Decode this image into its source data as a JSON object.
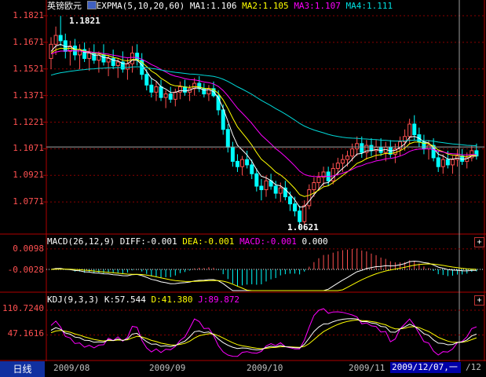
{
  "main_panel": {
    "symbol": "英镑欧元",
    "indicator": "EXPMA(5,10,20,60)",
    "ma1_label": "MA1:1.106",
    "ma2_label": "MA2:1.105",
    "ma3_label": "MA3:1.107",
    "ma4_label": "MA4:1.111",
    "y_ticks": [
      "1.1821",
      "1.1671",
      "1.1521",
      "1.1371",
      "1.1221",
      "1.1071",
      "1.0921",
      "1.0771"
    ],
    "high_label": "1.1821",
    "low_label": "1.0621"
  },
  "macd_panel": {
    "title": "MACD(26,12,9)",
    "diff_label": "DIFF:-0.001",
    "dea_label": "DEA:-0.001",
    "macd_label": "MACD:-0.001",
    "zero_label": "0.000",
    "y_ticks": [
      "0.0098",
      "-0.0028"
    ]
  },
  "kdj_panel": {
    "title": "KDJ(9,3,3)",
    "k_label": "K:57.544",
    "d_label": "D:41.380",
    "j_label": "J:89.872",
    "y_ticks": [
      "110.7240",
      "47.1616"
    ]
  },
  "bottom_bar": {
    "period_tab": "日线",
    "x_ticks": [
      "2009/08",
      "2009/09",
      "2009/10",
      "2009/11"
    ],
    "cursor_date": "2009/12/07,一",
    "cursor_tail": "/12"
  },
  "panel_buttons": {
    "expand": "+"
  },
  "colors": {
    "up": "#ff5050",
    "down": "#00ffff",
    "ma1": "#ffffff",
    "ma2": "#ffff00",
    "ma3": "#ff00ff",
    "ma4": "#00d8d8",
    "grid": "#8b0000",
    "cursor_bg": "#0000a8"
  },
  "chart_data": {
    "type": "candlestick",
    "ylim": [
      1.0621,
      1.1821
    ],
    "candles": [
      [
        1.158,
        1.17,
        1.152,
        1.166
      ],
      [
        1.166,
        1.176,
        1.16,
        1.171
      ],
      [
        1.171,
        1.182,
        1.165,
        1.168
      ],
      [
        1.168,
        1.172,
        1.158,
        1.162
      ],
      [
        1.162,
        1.168,
        1.154,
        1.165
      ],
      [
        1.165,
        1.169,
        1.157,
        1.16
      ],
      [
        1.16,
        1.166,
        1.152,
        1.163
      ],
      [
        1.163,
        1.167,
        1.156,
        1.158
      ],
      [
        1.158,
        1.164,
        1.151,
        1.161
      ],
      [
        1.161,
        1.166,
        1.155,
        1.157
      ],
      [
        1.157,
        1.162,
        1.15,
        1.16
      ],
      [
        1.16,
        1.166,
        1.154,
        1.156
      ],
      [
        1.156,
        1.16,
        1.148,
        1.158
      ],
      [
        1.158,
        1.163,
        1.152,
        1.154
      ],
      [
        1.154,
        1.158,
        1.147,
        1.156
      ],
      [
        1.156,
        1.162,
        1.15,
        1.152
      ],
      [
        1.152,
        1.158,
        1.146,
        1.155
      ],
      [
        1.155,
        1.165,
        1.15,
        1.161
      ],
      [
        1.161,
        1.166,
        1.154,
        1.157
      ],
      [
        1.157,
        1.161,
        1.146,
        1.149
      ],
      [
        1.149,
        1.152,
        1.14,
        1.143
      ],
      [
        1.143,
        1.147,
        1.136,
        1.139
      ],
      [
        1.139,
        1.145,
        1.134,
        1.142
      ],
      [
        1.142,
        1.146,
        1.134,
        1.136
      ],
      [
        1.136,
        1.14,
        1.13,
        1.138
      ],
      [
        1.138,
        1.142,
        1.133,
        1.135
      ],
      [
        1.135,
        1.141,
        1.131,
        1.139
      ],
      [
        1.139,
        1.145,
        1.135,
        1.142
      ],
      [
        1.142,
        1.146,
        1.137,
        1.139
      ],
      [
        1.139,
        1.143,
        1.134,
        1.141
      ],
      [
        1.141,
        1.147,
        1.137,
        1.144
      ],
      [
        1.144,
        1.148,
        1.139,
        1.141
      ],
      [
        1.141,
        1.144,
        1.136,
        1.138
      ],
      [
        1.138,
        1.143,
        1.134,
        1.141
      ],
      [
        1.141,
        1.145,
        1.136,
        1.137
      ],
      [
        1.137,
        1.14,
        1.126,
        1.129
      ],
      [
        1.129,
        1.132,
        1.115,
        1.118
      ],
      [
        1.118,
        1.121,
        1.105,
        1.108
      ],
      [
        1.108,
        1.111,
        1.097,
        1.1
      ],
      [
        1.1,
        1.104,
        1.094,
        1.097
      ],
      [
        1.097,
        1.103,
        1.092,
        1.101
      ],
      [
        1.101,
        1.106,
        1.096,
        1.098
      ],
      [
        1.098,
        1.101,
        1.09,
        1.093
      ],
      [
        1.093,
        1.096,
        1.083,
        1.086
      ],
      [
        1.086,
        1.09,
        1.078,
        1.084
      ],
      [
        1.084,
        1.092,
        1.08,
        1.089
      ],
      [
        1.089,
        1.093,
        1.084,
        1.086
      ],
      [
        1.086,
        1.089,
        1.079,
        1.082
      ],
      [
        1.082,
        1.088,
        1.077,
        1.085
      ],
      [
        1.085,
        1.089,
        1.078,
        1.08
      ],
      [
        1.08,
        1.083,
        1.072,
        1.076
      ],
      [
        1.076,
        1.08,
        1.069,
        1.072
      ],
      [
        1.072,
        1.075,
        1.062,
        1.066
      ],
      [
        1.066,
        1.078,
        1.064,
        1.075
      ],
      [
        1.075,
        1.087,
        1.073,
        1.084
      ],
      [
        1.084,
        1.091,
        1.08,
        1.088
      ],
      [
        1.088,
        1.094,
        1.084,
        1.091
      ],
      [
        1.091,
        1.097,
        1.086,
        1.094
      ],
      [
        1.094,
        1.097,
        1.086,
        1.089
      ],
      [
        1.089,
        1.099,
        1.087,
        1.096
      ],
      [
        1.096,
        1.102,
        1.092,
        1.099
      ],
      [
        1.099,
        1.104,
        1.094,
        1.101
      ],
      [
        1.101,
        1.106,
        1.097,
        1.103
      ],
      [
        1.103,
        1.11,
        1.1,
        1.107
      ],
      [
        1.107,
        1.114,
        1.103,
        1.11
      ],
      [
        1.11,
        1.114,
        1.102,
        1.105
      ],
      [
        1.105,
        1.112,
        1.101,
        1.109
      ],
      [
        1.109,
        1.113,
        1.103,
        1.106
      ],
      [
        1.106,
        1.112,
        1.101,
        1.108
      ],
      [
        1.108,
        1.113,
        1.103,
        1.105
      ],
      [
        1.105,
        1.111,
        1.1,
        1.108
      ],
      [
        1.108,
        1.112,
        1.102,
        1.104
      ],
      [
        1.104,
        1.11,
        1.099,
        1.107
      ],
      [
        1.107,
        1.114,
        1.103,
        1.111
      ],
      [
        1.111,
        1.118,
        1.106,
        1.114
      ],
      [
        1.114,
        1.124,
        1.11,
        1.121
      ],
      [
        1.121,
        1.126,
        1.112,
        1.115
      ],
      [
        1.115,
        1.119,
        1.108,
        1.111
      ],
      [
        1.111,
        1.115,
        1.104,
        1.107
      ],
      [
        1.107,
        1.112,
        1.101,
        1.109
      ],
      [
        1.109,
        1.113,
        1.1,
        1.102
      ],
      [
        1.102,
        1.106,
        1.094,
        1.097
      ],
      [
        1.097,
        1.104,
        1.093,
        1.101
      ],
      [
        1.101,
        1.106,
        1.096,
        1.098
      ],
      [
        1.098,
        1.103,
        1.093,
        1.101
      ],
      [
        1.101,
        1.107,
        1.097,
        1.103
      ],
      [
        1.103,
        1.107,
        1.098,
        1.1
      ],
      [
        1.1,
        1.105,
        1.096,
        1.102
      ],
      [
        1.102,
        1.109,
        1.1,
        1.106
      ],
      [
        1.106,
        1.11,
        1.101,
        1.103
      ]
    ]
  }
}
